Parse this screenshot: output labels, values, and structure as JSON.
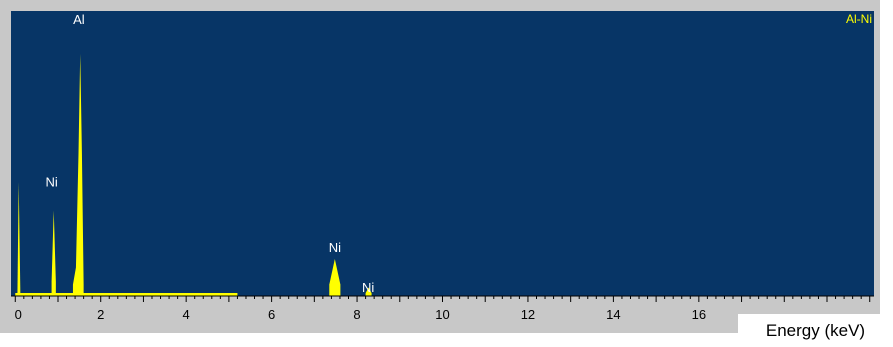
{
  "chart_data": {
    "type": "line",
    "title": "",
    "sample_label": "Al-Ni",
    "xlabel": "Energy (keV)",
    "ylabel": "",
    "xlim": [
      -0.1,
      20.1
    ],
    "ylim": [
      0,
      100
    ],
    "x_ticks": [
      0,
      2,
      4,
      6,
      8,
      10,
      12,
      14,
      16
    ],
    "grid": false,
    "legend": "none",
    "colors": {
      "background": "#073566",
      "spectrum": "#ffff00",
      "frame": "#c8c8c8"
    },
    "series": [
      {
        "values": [
          {
            "x": 0.05,
            "y": 0
          },
          {
            "x": 0.08,
            "y": 40
          },
          {
            "x": 0.12,
            "y": 0
          },
          {
            "x": 0.85,
            "y": 5
          },
          {
            "x": 0.9,
            "y": 30
          },
          {
            "x": 0.95,
            "y": 5
          },
          {
            "x": 1.35,
            "y": 4
          },
          {
            "x": 1.42,
            "y": 10
          },
          {
            "x": 1.48,
            "y": 50
          },
          {
            "x": 1.52,
            "y": 85
          },
          {
            "x": 1.56,
            "y": 50
          },
          {
            "x": 1.6,
            "y": 4
          },
          {
            "x": 7.35,
            "y": 4
          },
          {
            "x": 7.48,
            "y": 13
          },
          {
            "x": 7.61,
            "y": 4
          },
          {
            "x": 8.2,
            "y": 1
          },
          {
            "x": 8.27,
            "y": 3
          },
          {
            "x": 8.34,
            "y": 1
          }
        ]
      }
    ],
    "peaks": [
      {
        "label": "Al",
        "x": 1.49,
        "y": 100
      },
      {
        "label": "Ni",
        "x": 0.85,
        "y": 43
      },
      {
        "label": "Ni",
        "x": 7.48,
        "y": 20
      },
      {
        "label": "Ni",
        "x": 8.26,
        "y": 6
      }
    ]
  }
}
